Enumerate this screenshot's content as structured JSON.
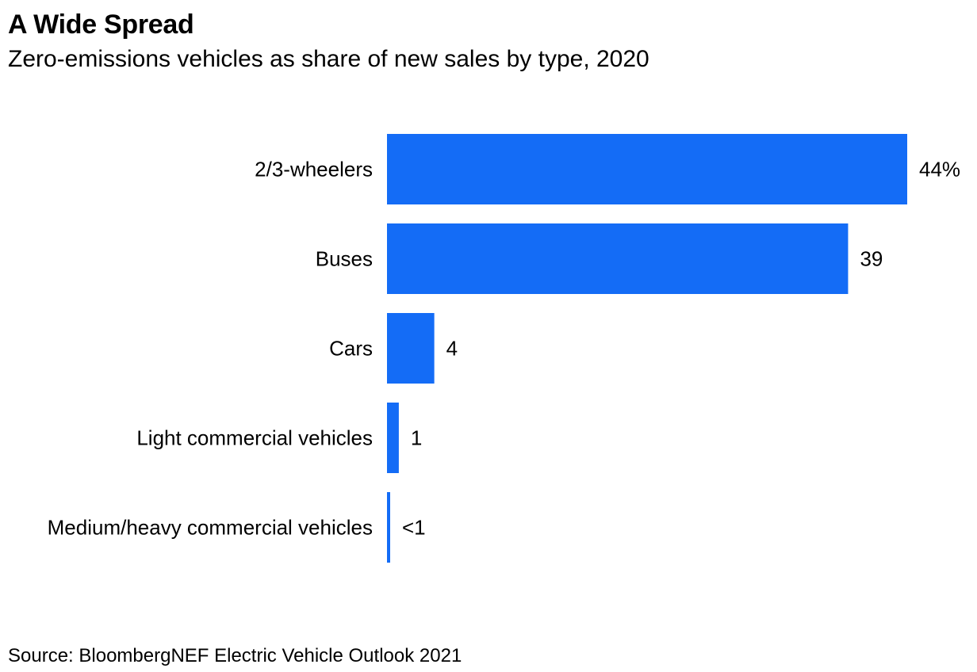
{
  "header": {
    "title": "A Wide Spread",
    "subtitle": "Zero-emissions vehicles as share of new sales by type, 2020"
  },
  "footer": {
    "source": "Source: BloombergNEF Electric Vehicle Outlook 2021"
  },
  "colors": {
    "bar": "#146cf6",
    "text": "#000000",
    "background": "#ffffff"
  },
  "chart_data": {
    "type": "bar",
    "orientation": "horizontal",
    "title": "A Wide Spread",
    "subtitle": "Zero-emissions vehicles as share of new sales by type, 2020",
    "xlabel": "",
    "ylabel": "",
    "unit": "%",
    "xlim": [
      0,
      44
    ],
    "grid": false,
    "legend": "none",
    "categories": [
      "2/3-wheelers",
      "Buses",
      "Cars",
      "Light commercial vehicles",
      "Medium/heavy commercial vehicles"
    ],
    "values": [
      44,
      39,
      4,
      1,
      0.2
    ],
    "data_labels": [
      "44%",
      "39",
      "4",
      "1",
      "<1"
    ]
  }
}
